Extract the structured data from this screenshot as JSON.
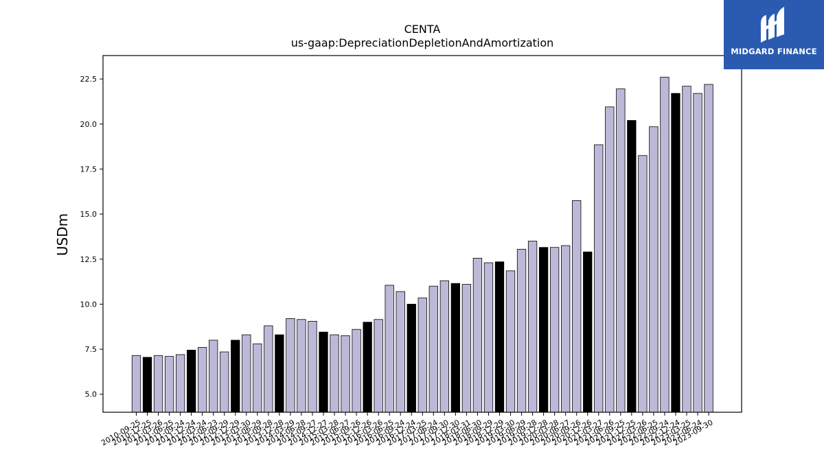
{
  "brand": {
    "name": "MIDGARD FINANCE",
    "background": "#2b5bb0"
  },
  "chart_data": {
    "type": "bar",
    "title": "CENTA",
    "subtitle": "us-gaap:DepreciationDepletionAndAmortization",
    "xlabel": "",
    "ylabel": "USDm",
    "ylim": [
      4.0,
      23.8
    ],
    "yticks": [
      "5.0",
      "7.5",
      "10.0",
      "12.5",
      "15.0",
      "17.5",
      "20.0",
      "22.5"
    ],
    "grid": false,
    "colors": {
      "quarter": "#bcb9d8",
      "fiscal_year_end": "#000000",
      "edge": "#000000"
    },
    "categories": [
      "2010-09-25",
      "2010-12-25",
      "2011-03-26",
      "2011-06-25",
      "2011-09-24",
      "2011-12-24",
      "2012-03-24",
      "2012-06-23",
      "2012-09-29",
      "2012-12-29",
      "2013-03-30",
      "2013-06-29",
      "2013-09-28",
      "2013-12-28",
      "2014-03-29",
      "2014-06-28",
      "2014-09-27",
      "2014-12-27",
      "2015-03-28",
      "2015-06-27",
      "2015-09-26",
      "2015-12-26",
      "2016-03-26",
      "2016-06-25",
      "2016-09-24",
      "2016-12-24",
      "2017-03-25",
      "2017-06-24",
      "2017-09-30",
      "2017-12-30",
      "2018-03-31",
      "2018-06-30",
      "2018-09-29",
      "2018-12-29",
      "2019-03-30",
      "2019-06-29",
      "2019-09-28",
      "2019-12-28",
      "2020-03-28",
      "2020-06-27",
      "2020-09-26",
      "2020-12-26",
      "2021-03-27",
      "2021-06-26",
      "2021-09-25",
      "2021-12-25",
      "2022-03-26",
      "2022-06-25",
      "2022-09-24",
      "2022-12-24",
      "2023-03-25",
      "2023-06-24",
      "2023-09-30"
    ],
    "values": [
      7.15,
      7.05,
      7.15,
      7.1,
      7.2,
      7.45,
      7.6,
      8.0,
      7.35,
      8.0,
      8.3,
      7.8,
      8.8,
      8.3,
      9.2,
      9.15,
      9.05,
      8.45,
      8.3,
      8.25,
      8.6,
      9.0,
      9.15,
      11.05,
      10.7,
      10.0,
      10.35,
      11.0,
      11.3,
      11.15,
      11.1,
      12.55,
      12.3,
      12.35,
      11.85,
      13.05,
      13.5,
      13.15,
      13.15,
      13.25,
      15.75,
      12.9,
      18.85,
      20.95,
      21.95,
      20.2,
      18.25,
      19.85,
      22.6,
      21.7,
      22.1,
      21.7,
      22.2
    ],
    "fiscal_year_end": [
      false,
      true,
      false,
      false,
      false,
      true,
      false,
      false,
      false,
      true,
      false,
      false,
      false,
      true,
      false,
      false,
      false,
      true,
      false,
      false,
      false,
      true,
      false,
      false,
      false,
      true,
      false,
      false,
      false,
      true,
      false,
      false,
      false,
      true,
      false,
      false,
      false,
      true,
      false,
      false,
      false,
      true,
      false,
      false,
      false,
      true,
      false,
      false,
      false,
      true,
      false,
      false,
      false
    ],
    "tick_label_stride": 1
  }
}
